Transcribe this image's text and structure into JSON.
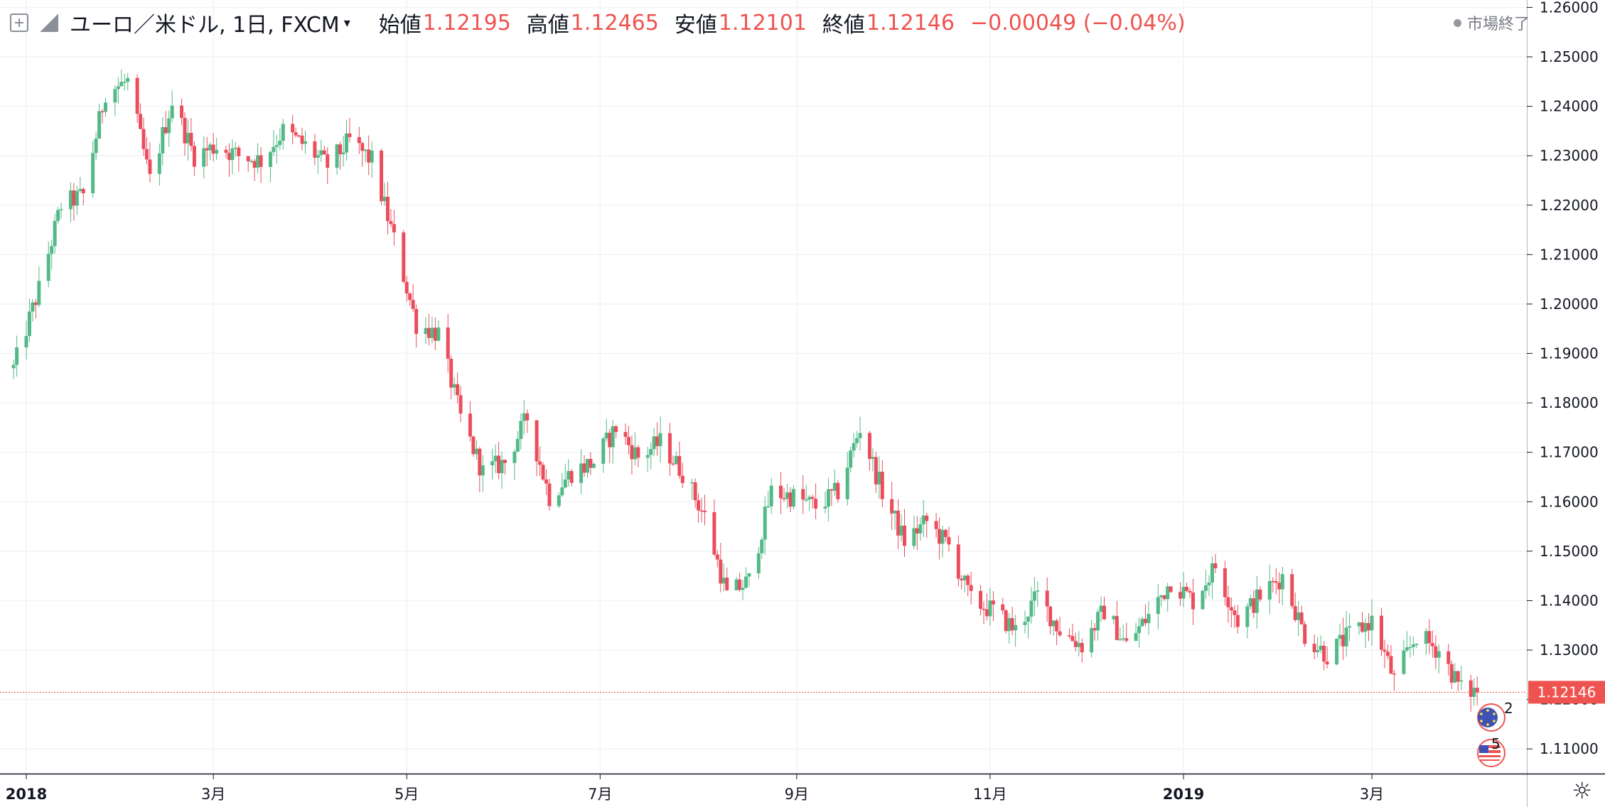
{
  "legend": {
    "symbol": "ユーロ／米ドル, 1日, FXCM",
    "open_label": "始値",
    "open": "1.12195",
    "high_label": "高値",
    "high": "1.12465",
    "low_label": "安値",
    "low": "1.12101",
    "close_label": "終値",
    "close": "1.12146",
    "change": "−0.00049 (−0.04%)",
    "icons": [
      "expand-icon",
      "flag-icon",
      "chevron-down-icon"
    ]
  },
  "status": "市場終了",
  "settings_icon": "gear-icon",
  "chart_data": {
    "type": "candlestick",
    "symbol": "EUR/USD",
    "interval": "1D",
    "last_price": 1.12146,
    "ylim": [
      1.105,
      1.2615
    ],
    "y_ticks": [
      1.26,
      1.25,
      1.24,
      1.23,
      1.22,
      1.21,
      1.2,
      1.19,
      1.18,
      1.17,
      1.16,
      1.15,
      1.14,
      1.13,
      1.12,
      1.11
    ],
    "y_tick_labels": [
      "1.26000",
      "1.25000",
      "1.24000",
      "1.23000",
      "1.22000",
      "1.21000",
      "1.20000",
      "1.19000",
      "1.18000",
      "1.17000",
      "1.16000",
      "1.15000",
      "1.14000",
      "1.13000",
      "1.12000",
      "1.11000"
    ],
    "x_ticks": [
      {
        "label": "2018",
        "date": "2018-01-01",
        "bold": true
      },
      {
        "label": "3月",
        "date": "2018-03-01",
        "bold": false
      },
      {
        "label": "5月",
        "date": "2018-05-01",
        "bold": false
      },
      {
        "label": "7月",
        "date": "2018-07-01",
        "bold": false
      },
      {
        "label": "9月",
        "date": "2018-09-01",
        "bold": false
      },
      {
        "label": "11月",
        "date": "2018-11-01",
        "bold": false
      },
      {
        "label": "2019",
        "date": "2019-01-01",
        "bold": true
      },
      {
        "label": "3月",
        "date": "2019-03-01",
        "bold": false
      }
    ],
    "up_color": "#53b987",
    "down_color": "#eb4d5c",
    "price_label_color": "#ef5350",
    "grid": true,
    "event_markers": [
      "eu-flag-icon",
      "us-flag-icon"
    ],
    "event_counts": [
      "2",
      "5"
    ],
    "closes": [
      [
        "2017-12-28",
        1.187
      ],
      [
        "2018-01-05",
        1.203
      ],
      [
        "2018-01-12",
        1.22
      ],
      [
        "2018-01-19",
        1.222
      ],
      [
        "2018-01-26",
        1.243
      ],
      [
        "2018-02-02",
        1.245
      ],
      [
        "2018-02-09",
        1.225
      ],
      [
        "2018-02-16",
        1.241
      ],
      [
        "2018-02-23",
        1.23
      ],
      [
        "2018-03-02",
        1.232
      ],
      [
        "2018-03-09",
        1.23
      ],
      [
        "2018-03-16",
        1.229
      ],
      [
        "2018-03-23",
        1.235
      ],
      [
        "2018-03-30",
        1.232
      ],
      [
        "2018-04-06",
        1.228
      ],
      [
        "2018-04-13",
        1.233
      ],
      [
        "2018-04-20",
        1.229
      ],
      [
        "2018-04-27",
        1.213
      ],
      [
        "2018-05-04",
        1.196
      ],
      [
        "2018-05-11",
        1.194
      ],
      [
        "2018-05-18",
        1.177
      ],
      [
        "2018-05-25",
        1.166
      ],
      [
        "2018-06-01",
        1.168
      ],
      [
        "2018-06-08",
        1.177
      ],
      [
        "2018-06-15",
        1.161
      ],
      [
        "2018-06-22",
        1.166
      ],
      [
        "2018-06-29",
        1.168
      ],
      [
        "2018-07-06",
        1.175
      ],
      [
        "2018-07-13",
        1.169
      ],
      [
        "2018-07-20",
        1.172
      ],
      [
        "2018-07-27",
        1.166
      ],
      [
        "2018-08-03",
        1.157
      ],
      [
        "2018-08-10",
        1.141
      ],
      [
        "2018-08-17",
        1.144
      ],
      [
        "2018-08-24",
        1.162
      ],
      [
        "2018-08-31",
        1.161
      ],
      [
        "2018-09-07",
        1.159
      ],
      [
        "2018-09-14",
        1.162
      ],
      [
        "2018-09-21",
        1.175
      ],
      [
        "2018-09-28",
        1.162
      ],
      [
        "2018-10-05",
        1.152
      ],
      [
        "2018-10-12",
        1.156
      ],
      [
        "2018-10-19",
        1.151
      ],
      [
        "2018-10-26",
        1.14
      ],
      [
        "2018-11-02",
        1.138
      ],
      [
        "2018-11-09",
        1.134
      ],
      [
        "2018-11-16",
        1.141
      ],
      [
        "2018-11-23",
        1.134
      ],
      [
        "2018-11-30",
        1.131
      ],
      [
        "2018-12-07",
        1.138
      ],
      [
        "2018-12-14",
        1.131
      ],
      [
        "2018-12-21",
        1.137
      ],
      [
        "2018-12-28",
        1.144
      ],
      [
        "2019-01-04",
        1.14
      ],
      [
        "2019-01-11",
        1.147
      ],
      [
        "2019-01-18",
        1.136
      ],
      [
        "2019-01-25",
        1.141
      ],
      [
        "2019-02-01",
        1.145
      ],
      [
        "2019-02-08",
        1.133
      ],
      [
        "2019-02-15",
        1.129
      ],
      [
        "2019-02-22",
        1.133
      ],
      [
        "2019-03-01",
        1.136
      ],
      [
        "2019-03-08",
        1.124
      ],
      [
        "2019-03-15",
        1.133
      ],
      [
        "2019-03-22",
        1.13
      ],
      [
        "2019-03-29",
        1.122
      ],
      [
        "2019-04-03",
        1.1215
      ]
    ]
  }
}
